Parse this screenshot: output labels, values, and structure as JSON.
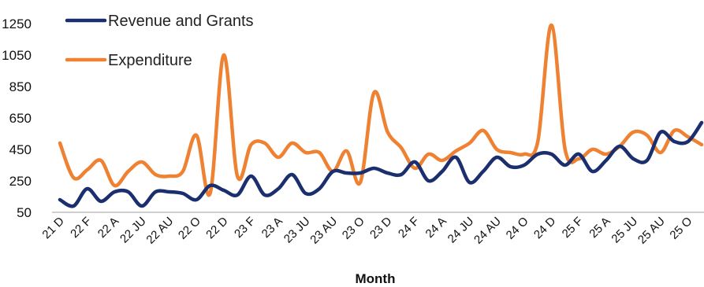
{
  "chart_data": {
    "type": "line",
    "title": "",
    "xlabel": "Month",
    "ylabel": "",
    "ylim": [
      50,
      1250
    ],
    "y_ticks": [
      50,
      250,
      450,
      650,
      850,
      1050,
      1250
    ],
    "x_tick_labels": [
      "21 D",
      "22 F",
      "22 A",
      "22 JU",
      "22 AU",
      "22 O",
      "22 D",
      "23 F",
      "23 A",
      "23 JU",
      "23 AU",
      "23 O",
      "23 D",
      "24 F",
      "24 A",
      "24 JU",
      "24 AU",
      "24 O",
      "24 D",
      "25 F",
      "25 A",
      "25 JU",
      "25 AU",
      "25 O"
    ],
    "x": [
      "21 D",
      "22 J",
      "22 F",
      "22 M",
      "22 A",
      "22 MA",
      "22 JU",
      "22 JL",
      "22 AU",
      "22 S",
      "22 O",
      "22 N",
      "22 D",
      "23 J",
      "23 F",
      "23 M",
      "23 A",
      "23 MA",
      "23 JU",
      "23 JL",
      "23 AU",
      "23 S",
      "23 O",
      "23 N",
      "23 D",
      "24 J",
      "24 F",
      "24 M",
      "24 A",
      "24 MA",
      "24 JU",
      "24 JL",
      "24 AU",
      "24 S",
      "24 O",
      "24 N",
      "24 D",
      "25 J",
      "25 F",
      "25 M",
      "25 A",
      "25 MA",
      "25 JU",
      "25 JL",
      "25 AU",
      "25 S",
      "25 O",
      "25 N"
    ],
    "series": [
      {
        "name": "Revenue and Grants",
        "color": "#1b2f6e",
        "values": [
          130,
          90,
          200,
          120,
          180,
          180,
          90,
          180,
          180,
          170,
          130,
          220,
          190,
          160,
          280,
          160,
          200,
          290,
          170,
          200,
          310,
          300,
          300,
          330,
          300,
          290,
          370,
          250,
          310,
          400,
          240,
          310,
          400,
          340,
          350,
          420,
          420,
          350,
          420,
          310,
          380,
          470,
          390,
          380,
          560,
          500,
          500,
          620
        ]
      },
      {
        "name": "Expenditure",
        "color": "#ef8232",
        "values": [
          490,
          270,
          320,
          380,
          220,
          310,
          370,
          290,
          280,
          310,
          540,
          170,
          1050,
          280,
          480,
          490,
          400,
          490,
          430,
          430,
          310,
          440,
          240,
          810,
          560,
          460,
          330,
          420,
          380,
          440,
          490,
          570,
          450,
          430,
          420,
          500,
          1240,
          450,
          390,
          450,
          420,
          470,
          560,
          540,
          430,
          570,
          530,
          480
        ]
      }
    ],
    "legend": "top-left",
    "grid": false
  }
}
